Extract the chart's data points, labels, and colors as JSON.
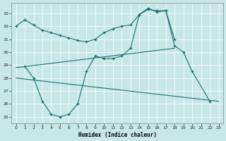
{
  "xlabel": "Humidex (Indice chaleur)",
  "bg_color": "#c8e8e8",
  "grid_color": "#aacccc",
  "line_color": "#1a6e6e",
  "xlim": [
    -0.5,
    23.5
  ],
  "ylim": [
    24.5,
    33.8
  ],
  "yticks": [
    25,
    26,
    27,
    28,
    29,
    30,
    31,
    32,
    33
  ],
  "xticks": [
    0,
    1,
    2,
    3,
    4,
    5,
    6,
    7,
    8,
    9,
    10,
    11,
    12,
    13,
    14,
    15,
    16,
    17,
    18,
    19,
    20,
    21,
    22,
    23
  ],
  "series": [
    {
      "x": [
        0,
        1,
        2,
        3,
        4,
        5,
        6,
        7,
        8,
        9,
        10,
        11,
        12,
        13,
        14,
        15,
        16,
        17,
        18
      ],
      "y": [
        32.0,
        32.5,
        32.1,
        31.7,
        31.5,
        31.3,
        31.1,
        30.9,
        30.8,
        31.0,
        31.5,
        31.8,
        32.0,
        32.1,
        32.9,
        33.3,
        33.2,
        33.2,
        31.0
      ],
      "marker": true
    },
    {
      "x": [
        1,
        2,
        3,
        4,
        5,
        6,
        7,
        8,
        9,
        10,
        11,
        12,
        13,
        14,
        15,
        16,
        17,
        18,
        19,
        20,
        22
      ],
      "y": [
        28.9,
        28.0,
        26.2,
        25.2,
        25.0,
        25.2,
        26.0,
        28.5,
        29.7,
        29.5,
        29.5,
        29.7,
        30.3,
        32.9,
        33.4,
        33.1,
        33.2,
        30.5,
        30.0,
        28.5,
        26.2
      ],
      "marker": true
    },
    {
      "x": [
        0,
        18
      ],
      "y": [
        28.8,
        30.3
      ],
      "marker": false
    },
    {
      "x": [
        0,
        23
      ],
      "y": [
        28.0,
        26.2
      ],
      "marker": false
    }
  ]
}
